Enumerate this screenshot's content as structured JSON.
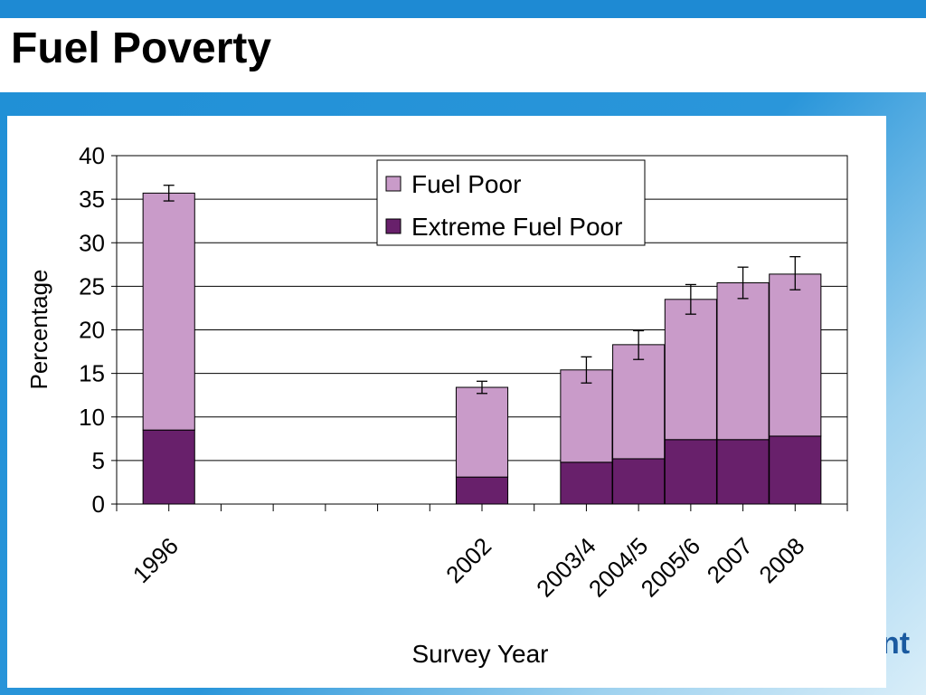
{
  "slide": {
    "title": "Fuel Poverty",
    "logo_text": "nt"
  },
  "colors": {
    "fuel_poor": "#c99bc9",
    "extreme_fuel_poor": "#68206b",
    "header_blue": "#1e8ad3"
  },
  "chart_data": {
    "type": "bar",
    "stacked": true,
    "xlabel": "Survey Year",
    "ylabel": "Percentage",
    "ylim": [
      0,
      40
    ],
    "yticks": [
      0,
      5,
      10,
      15,
      20,
      25,
      30,
      35,
      40
    ],
    "grid": true,
    "legend_position": "top-center",
    "slots": [
      "1996",
      "",
      "",
      "",
      "",
      "",
      "2002",
      "",
      "2003/4",
      "2004/5",
      "2005/6",
      "2007",
      "2008"
    ],
    "categories": [
      "1996",
      "2002",
      "2003/4",
      "2004/5",
      "2005/6",
      "2007",
      "2008"
    ],
    "series": [
      {
        "name": "Extreme Fuel Poor",
        "color": "#68206b",
        "values": [
          8.5,
          3.1,
          4.8,
          5.2,
          7.4,
          7.4,
          7.8
        ]
      },
      {
        "name": "Fuel Poor",
        "color": "#c99bc9",
        "values": [
          27.2,
          10.3,
          10.6,
          13.1,
          16.1,
          18.0,
          18.6
        ]
      }
    ],
    "totals": [
      35.7,
      13.4,
      15.4,
      18.3,
      23.5,
      25.4,
      26.4
    ],
    "error_bars": [
      [
        34.8,
        36.6
      ],
      [
        12.7,
        14.1
      ],
      [
        13.9,
        16.9
      ],
      [
        16.6,
        19.9
      ],
      [
        21.8,
        25.2
      ],
      [
        23.6,
        27.2
      ],
      [
        24.6,
        28.4
      ]
    ],
    "legend": [
      "Fuel Poor",
      "Extreme Fuel Poor"
    ]
  }
}
